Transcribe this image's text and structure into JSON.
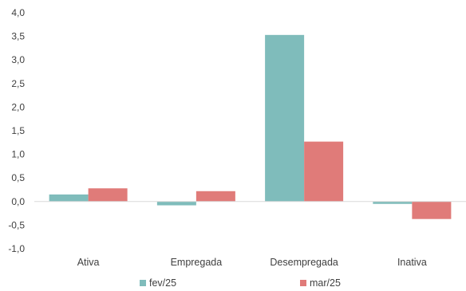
{
  "chart_data": {
    "type": "bar",
    "categories": [
      "Ativa",
      "Empregada",
      "Desempregada",
      "Inativa"
    ],
    "series": [
      {
        "name": "fev/25",
        "color": "#7fbcbb",
        "values": [
          0.15,
          -0.08,
          3.53,
          -0.05
        ]
      },
      {
        "name": "mar/25",
        "color": "#e07b79",
        "values": [
          0.28,
          0.22,
          1.27,
          -0.37
        ]
      }
    ],
    "ylim": [
      -1.0,
      4.0
    ],
    "yticks": [
      "-1,0",
      "-0,5",
      "0,0",
      "0,5",
      "1,0",
      "1,5",
      "2,0",
      "2,5",
      "3,0",
      "3,5",
      "4,0"
    ],
    "grid": false,
    "legend_position": "bottom"
  }
}
